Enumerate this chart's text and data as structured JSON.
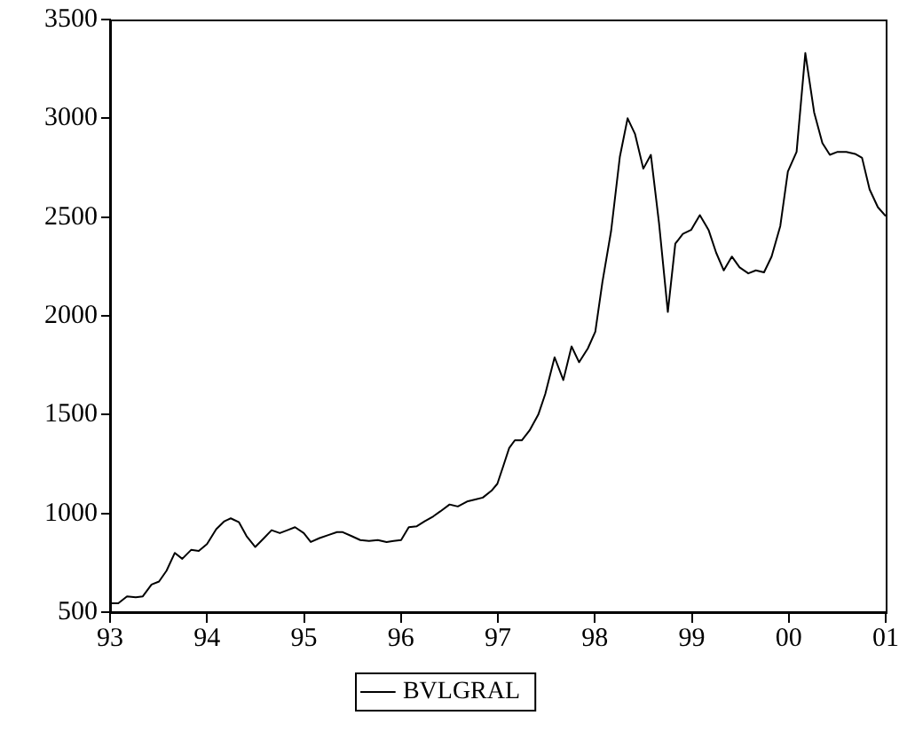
{
  "chart_data": {
    "type": "line",
    "xlim": [
      1993,
      2001
    ],
    "ylim": [
      500,
      3500
    ],
    "xticks": [
      {
        "value": 1993,
        "label": "93"
      },
      {
        "value": 1994,
        "label": "94"
      },
      {
        "value": 1995,
        "label": "95"
      },
      {
        "value": 1996,
        "label": "96"
      },
      {
        "value": 1997,
        "label": "97"
      },
      {
        "value": 1998,
        "label": "98"
      },
      {
        "value": 1999,
        "label": "99"
      },
      {
        "value": 2000,
        "label": "00"
      },
      {
        "value": 2001,
        "label": "01"
      }
    ],
    "yticks": [
      500,
      1000,
      1500,
      2000,
      2500,
      3000,
      3500
    ],
    "grid": false,
    "legend": "bottom",
    "marker": "none",
    "line_style": "solid",
    "series": [
      {
        "name": "BVLGRAL",
        "color": "#000000",
        "x": [
          1993.0,
          1993.085,
          1993.175,
          1993.265,
          1993.338,
          1993.428,
          1993.505,
          1993.583,
          1993.668,
          1993.745,
          1993.836,
          1993.915,
          1994.0,
          1994.095,
          1994.179,
          1994.245,
          1994.33,
          1994.408,
          1994.498,
          1994.588,
          1994.666,
          1994.751,
          1994.829,
          1994.908,
          1994.998,
          1995.07,
          1995.161,
          1995.251,
          1995.341,
          1995.4,
          1995.491,
          1995.581,
          1995.671,
          1995.762,
          1995.852,
          1995.924,
          1996.002,
          1996.081,
          1996.164,
          1996.244,
          1996.334,
          1996.406,
          1996.502,
          1996.587,
          1996.682,
          1996.767,
          1996.845,
          1996.935,
          1996.995,
          1997.056,
          1997.116,
          1997.175,
          1997.247,
          1997.327,
          1997.417,
          1997.489,
          1997.585,
          1997.675,
          1997.76,
          1997.838,
          1997.928,
          1998.005,
          1998.078,
          1998.168,
          1998.258,
          1998.338,
          1998.415,
          1998.5,
          1998.578,
          1998.662,
          1998.753,
          1998.83,
          1998.908,
          1998.993,
          1999.083,
          1999.173,
          1999.251,
          1999.33,
          1999.413,
          1999.493,
          1999.583,
          1999.661,
          1999.745,
          1999.823,
          1999.913,
          1999.991,
          2000.081,
          2000.171,
          2000.262,
          2000.347,
          2000.424,
          2000.504,
          2000.594,
          2000.684,
          2000.756,
          2000.834,
          2000.919,
          2001.0
        ],
        "values": [
          545,
          545,
          580,
          575,
          580,
          640,
          655,
          710,
          800,
          770,
          815,
          810,
          845,
          920,
          960,
          975,
          955,
          885,
          830,
          875,
          915,
          900,
          915,
          930,
          900,
          855,
          875,
          890,
          905,
          905,
          885,
          865,
          860,
          865,
          855,
          860,
          865,
          930,
          935,
          960,
          985,
          1010,
          1045,
          1035,
          1060,
          1070,
          1080,
          1115,
          1150,
          1240,
          1330,
          1370,
          1370,
          1420,
          1500,
          1605,
          1790,
          1675,
          1845,
          1765,
          1835,
          1920,
          2170,
          2430,
          2805,
          3000,
          2920,
          2745,
          2815,
          2470,
          2020,
          2365,
          2415,
          2435,
          2510,
          2435,
          2320,
          2230,
          2300,
          2245,
          2215,
          2230,
          2220,
          2300,
          2455,
          2730,
          2830,
          3330,
          3030,
          2875,
          2815,
          2830,
          2830,
          2820,
          2800,
          2640,
          2550,
          2505
        ]
      }
    ]
  }
}
